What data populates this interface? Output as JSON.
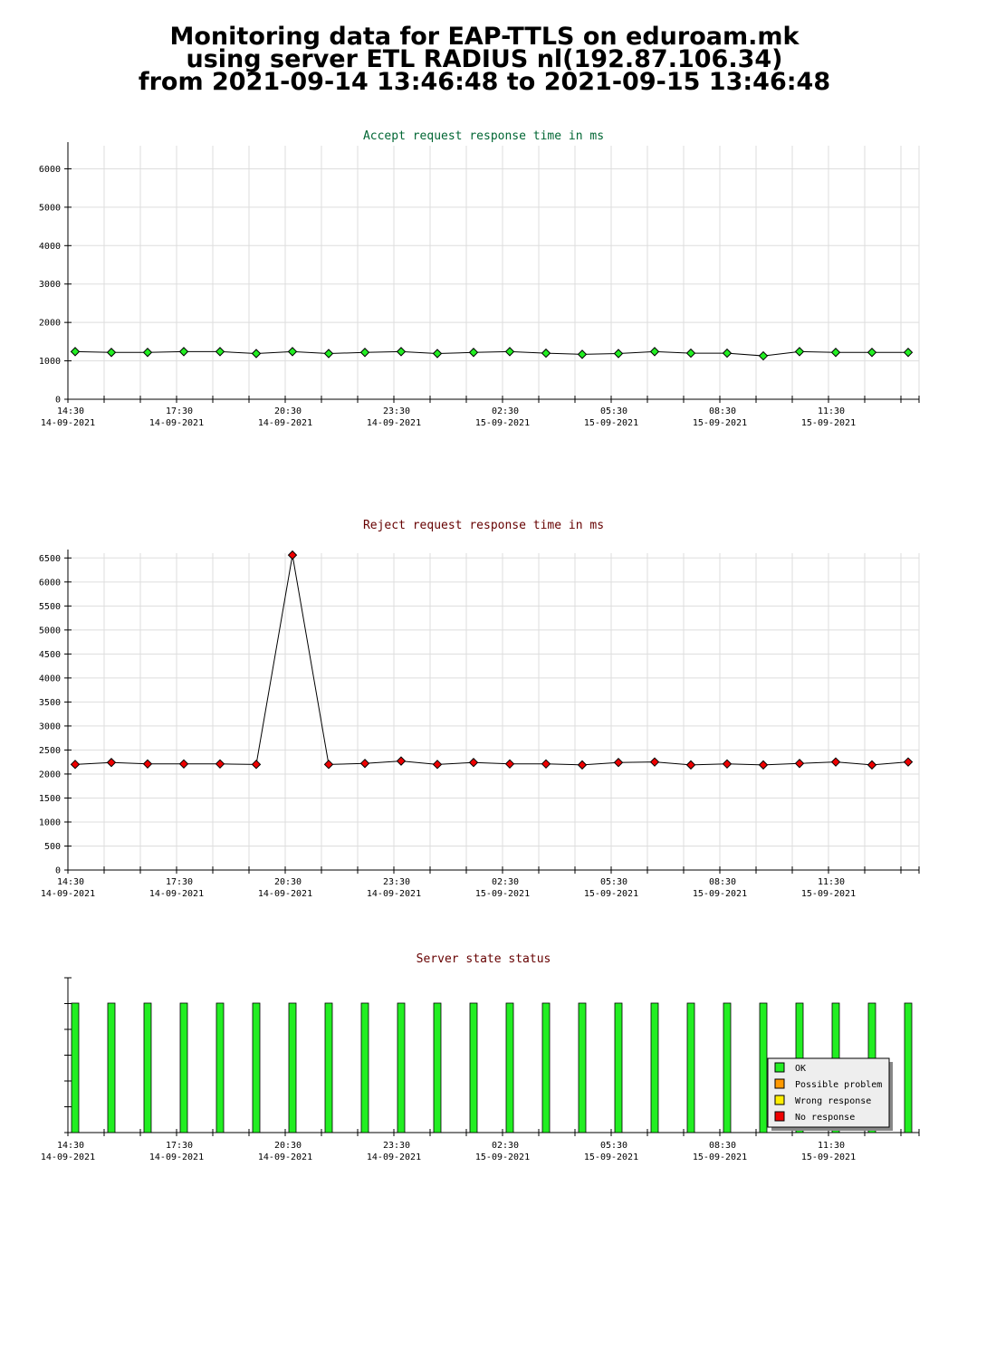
{
  "header": {
    "line1": "Monitoring data for EAP-TTLS on eduroam.mk",
    "line2": "using server ETL RADIUS nl(192.87.106.34)",
    "line3": "from 2021-09-14 13:46:48 to 2021-09-15 13:46:48"
  },
  "colors": {
    "accept_title": "#006633",
    "reject_title": "#660000",
    "status_title": "#660000",
    "ok": "#22ee22",
    "possible_problem": "#ff9900",
    "wrong_response": "#ffee00",
    "no_response": "#ee0000"
  },
  "chart_data": [
    {
      "type": "line",
      "title": "Accept request response time in ms",
      "ylim": [
        0,
        6600
      ],
      "yticks": [
        0,
        1000,
        2000,
        3000,
        4000,
        5000,
        6000
      ],
      "xticks": [
        {
          "time": "14:30",
          "date": "14-09-2021"
        },
        {
          "time": "17:30",
          "date": "14-09-2021"
        },
        {
          "time": "20:30",
          "date": "14-09-2021"
        },
        {
          "time": "23:30",
          "date": "14-09-2021"
        },
        {
          "time": "02:30",
          "date": "15-09-2021"
        },
        {
          "time": "05:30",
          "date": "15-09-2021"
        },
        {
          "time": "08:30",
          "date": "15-09-2021"
        },
        {
          "time": "11:30",
          "date": "15-09-2021"
        }
      ],
      "grid": true,
      "series": [
        {
          "values": [
            1240,
            1220,
            1220,
            1240,
            1240,
            1190,
            1240,
            1190,
            1220,
            1240,
            1190,
            1220,
            1240,
            1200,
            1170,
            1190,
            1240,
            1200,
            1200,
            1130,
            1240,
            1220,
            1220,
            1220
          ]
        }
      ]
    },
    {
      "type": "line",
      "title": "Reject request response time in ms",
      "ylim": [
        0,
        6600
      ],
      "yticks": [
        0,
        500,
        1000,
        1500,
        2000,
        2500,
        3000,
        3500,
        4000,
        4500,
        5000,
        5500,
        6000,
        6500
      ],
      "xticks": [
        {
          "time": "14:30",
          "date": "14-09-2021"
        },
        {
          "time": "17:30",
          "date": "14-09-2021"
        },
        {
          "time": "20:30",
          "date": "14-09-2021"
        },
        {
          "time": "23:30",
          "date": "14-09-2021"
        },
        {
          "time": "02:30",
          "date": "15-09-2021"
        },
        {
          "time": "05:30",
          "date": "15-09-2021"
        },
        {
          "time": "08:30",
          "date": "15-09-2021"
        },
        {
          "time": "11:30",
          "date": "15-09-2021"
        }
      ],
      "grid": true,
      "series": [
        {
          "values": [
            2200,
            2240,
            2210,
            2210,
            2210,
            2200,
            6560,
            2200,
            2220,
            2270,
            2200,
            2240,
            2210,
            2210,
            2190,
            2240,
            2250,
            2190,
            2210,
            2190,
            2220,
            2250,
            2190,
            2250
          ]
        }
      ]
    },
    {
      "type": "bar",
      "title": "Server state status",
      "xticks": [
        {
          "time": "14:30",
          "date": "14-09-2021"
        },
        {
          "time": "17:30",
          "date": "14-09-2021"
        },
        {
          "time": "20:30",
          "date": "14-09-2021"
        },
        {
          "time": "23:30",
          "date": "14-09-2021"
        },
        {
          "time": "02:30",
          "date": "15-09-2021"
        },
        {
          "time": "05:30",
          "date": "15-09-2021"
        },
        {
          "time": "08:30",
          "date": "15-09-2021"
        },
        {
          "time": "11:30",
          "date": "15-09-2021"
        }
      ],
      "states": [
        "OK",
        "OK",
        "OK",
        "OK",
        "OK",
        "OK",
        "OK",
        "OK",
        "OK",
        "OK",
        "OK",
        "OK",
        "OK",
        "OK",
        "OK",
        "OK",
        "OK",
        "OK",
        "OK",
        "OK",
        "OK",
        "OK",
        "OK",
        "OK"
      ],
      "legend": {
        "placement": "bottom-right",
        "entries": [
          {
            "label": "OK",
            "color": "#22ee22"
          },
          {
            "label": "Possible problem",
            "color": "#ff9900"
          },
          {
            "label": "Wrong response",
            "color": "#ffee00"
          },
          {
            "label": "No response",
            "color": "#ee0000"
          }
        ]
      }
    }
  ]
}
